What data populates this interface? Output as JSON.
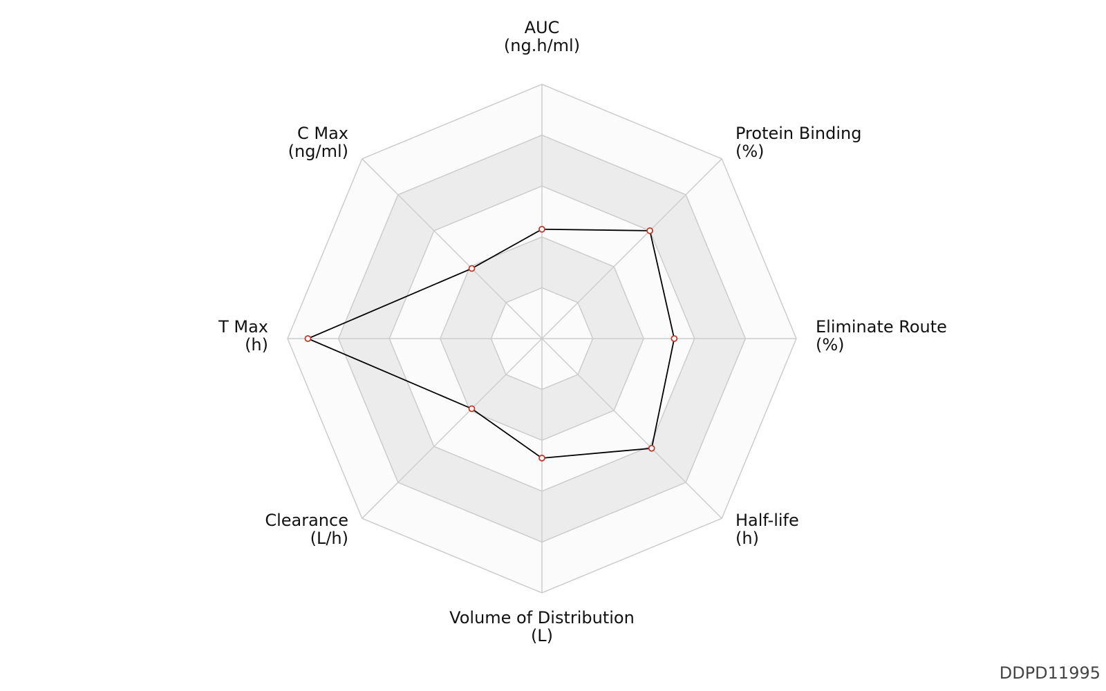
{
  "chart_data": {
    "type": "radar",
    "axes": [
      {
        "name": "AUC",
        "unit": "(ng.h/ml)"
      },
      {
        "name": "Protein Binding",
        "unit": "(%)"
      },
      {
        "name": "Eliminate Route",
        "unit": "(%)"
      },
      {
        "name": "Half-life",
        "unit": "(h)"
      },
      {
        "name": "Volume of Distribution",
        "unit": "(L)"
      },
      {
        "name": "Clearance",
        "unit": "(L/h)"
      },
      {
        "name": "T Max",
        "unit": "(h)"
      },
      {
        "name": "C Max",
        "unit": "(ng/ml)"
      }
    ],
    "values": [
      0.43,
      0.6,
      0.52,
      0.61,
      0.47,
      0.39,
      0.92,
      0.39
    ],
    "rlim": [
      0,
      1
    ],
    "rings": 5,
    "grid": true,
    "colors": {
      "line": "#000000",
      "marker_stroke": "#c0392b",
      "marker_fill": "#ffffff",
      "grid_line": "#cccccc",
      "band_light": "#fbfbfb",
      "band_dark": "#ececec"
    }
  },
  "watermark": "DDPD11995"
}
